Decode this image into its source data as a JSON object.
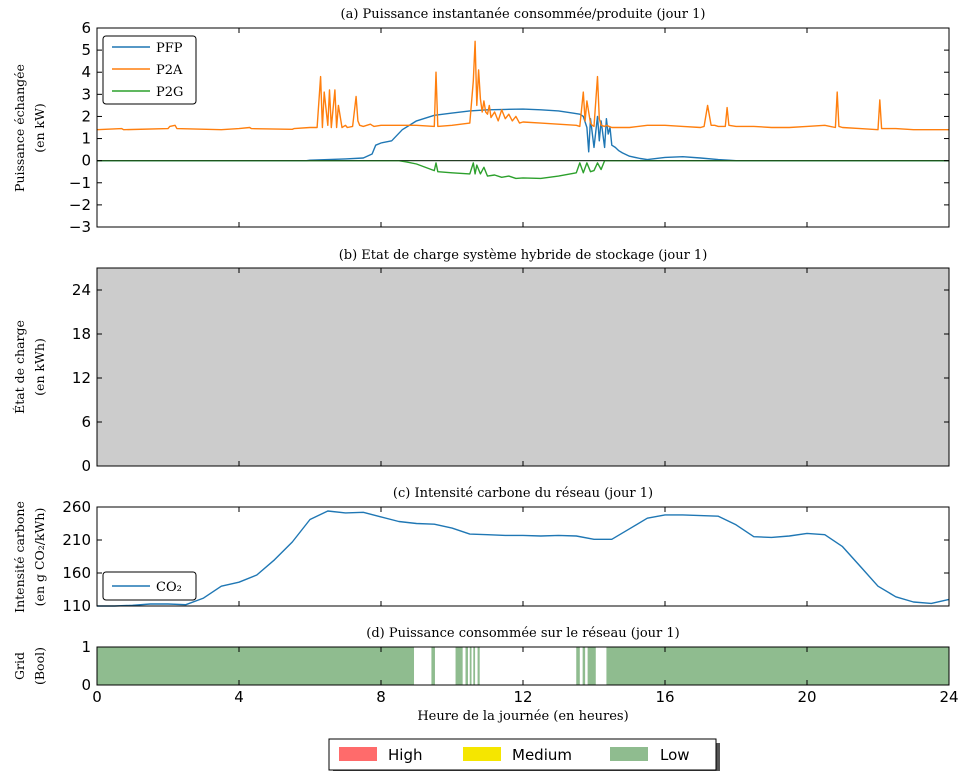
{
  "chart_data": [
    {
      "type": "line",
      "title": "(a) Puissance instantanée consommée/produite (jour 1)",
      "xlabel": "",
      "ylabel": [
        "Puissance échangée",
        "(en kW)"
      ],
      "xlim": [
        0,
        24
      ],
      "ylim": [
        -3,
        6
      ],
      "yticks": [
        "−3",
        "−2",
        "−1",
        "0",
        "1",
        "2",
        "3",
        "4",
        "5",
        "6"
      ],
      "legend": "top-left",
      "colors": {
        "PFP": "#1f77b4",
        "P2A": "#ff7f0e",
        "P2G": "#2ca02c"
      },
      "series": [
        {
          "name": "PFP",
          "x": [
            0,
            5.9,
            6.0,
            6.5,
            7.0,
            7.5,
            7.75,
            7.85,
            8.0,
            8.3,
            8.6,
            9.0,
            9.5,
            10.0,
            10.5,
            11.0,
            11.5,
            12.0,
            12.5,
            13.0,
            13.4,
            13.6,
            13.7,
            13.8,
            13.85,
            13.9,
            14.0,
            14.1,
            14.15,
            14.2,
            14.3,
            14.35,
            14.4,
            14.45,
            14.5,
            14.6,
            14.7,
            14.8,
            15.0,
            15.3,
            15.5,
            16.0,
            16.5,
            17.0,
            17.5,
            17.8,
            18.0,
            24
          ],
          "y": [
            0,
            0,
            0.02,
            0.05,
            0.08,
            0.12,
            0.3,
            0.7,
            0.8,
            0.9,
            1.4,
            1.8,
            2.05,
            2.15,
            2.25,
            2.3,
            2.32,
            2.33,
            2.3,
            2.25,
            2.15,
            2.1,
            2.0,
            1.5,
            0.4,
            1.9,
            0.6,
            2.0,
            0.9,
            1.8,
            0.6,
            1.9,
            1.2,
            1.5,
            0.7,
            0.6,
            0.45,
            0.35,
            0.2,
            0.1,
            0.05,
            0.15,
            0.18,
            0.12,
            0.05,
            0.02,
            0,
            0
          ]
        },
        {
          "name": "P2A",
          "x": [
            0,
            0.7,
            0.75,
            2.0,
            2.05,
            2.2,
            2.25,
            3.5,
            4.0,
            4.3,
            4.35,
            5.5,
            5.55,
            6.0,
            6.2,
            6.3,
            6.35,
            6.4,
            6.5,
            6.55,
            6.6,
            6.7,
            6.75,
            6.8,
            6.9,
            7.0,
            7.05,
            7.2,
            7.3,
            7.35,
            7.4,
            7.5,
            7.6,
            7.7,
            7.75,
            7.8,
            8.0,
            8.5,
            9.0,
            9.5,
            9.55,
            9.6,
            10.0,
            10.5,
            10.6,
            10.65,
            10.7,
            10.75,
            10.8,
            10.85,
            10.9,
            10.95,
            11.0,
            11.05,
            11.1,
            11.2,
            11.3,
            11.4,
            11.5,
            11.6,
            11.7,
            11.8,
            11.9,
            12.0,
            12.5,
            13.0,
            13.5,
            13.6,
            13.7,
            13.75,
            13.8,
            13.9,
            13.95,
            14.0,
            14.1,
            14.15,
            14.2,
            14.3,
            14.35,
            14.5,
            15.0,
            15.5,
            16.0,
            16.5,
            17.0,
            17.1,
            17.2,
            17.3,
            17.4,
            17.5,
            17.7,
            17.75,
            17.8,
            18.0,
            18.5,
            19.0,
            19.5,
            20.0,
            20.5,
            20.8,
            20.85,
            20.9,
            21.0,
            21.5,
            22.0,
            22.05,
            22.1,
            22.2,
            22.5,
            23.0,
            23.5,
            24
          ],
          "y": [
            1.4,
            1.45,
            1.4,
            1.45,
            1.55,
            1.6,
            1.45,
            1.4,
            1.45,
            1.5,
            1.45,
            1.42,
            1.45,
            1.5,
            1.5,
            3.8,
            1.5,
            3.1,
            1.6,
            3.2,
            1.5,
            3.2,
            1.5,
            2.5,
            1.5,
            1.6,
            1.5,
            1.55,
            2.9,
            1.8,
            1.6,
            1.55,
            1.6,
            1.65,
            1.6,
            1.55,
            1.6,
            1.6,
            1.6,
            1.55,
            4.0,
            1.55,
            1.6,
            1.7,
            3.6,
            5.4,
            2.5,
            4.1,
            2.8,
            2.2,
            2.7,
            2.2,
            2.1,
            2.5,
            1.95,
            2.2,
            1.8,
            2.3,
            1.9,
            2.1,
            1.8,
            2.0,
            1.7,
            1.75,
            1.7,
            1.65,
            1.6,
            1.55,
            3.1,
            1.8,
            2.7,
            1.7,
            1.6,
            1.55,
            3.8,
            1.9,
            1.6,
            1.55,
            1.6,
            1.5,
            1.5,
            1.6,
            1.6,
            1.55,
            1.5,
            1.55,
            2.5,
            1.6,
            1.6,
            1.55,
            1.55,
            2.4,
            1.6,
            1.55,
            1.55,
            1.5,
            1.5,
            1.55,
            1.6,
            1.5,
            3.1,
            1.55,
            1.5,
            1.45,
            1.4,
            2.75,
            1.45,
            1.45,
            1.45,
            1.4,
            1.4,
            1.4
          ]
        },
        {
          "name": "P2G",
          "x": [
            0,
            8.5,
            8.7,
            9.0,
            9.5,
            9.55,
            9.6,
            10.0,
            10.5,
            10.6,
            10.65,
            10.7,
            10.8,
            10.9,
            11.0,
            11.2,
            11.4,
            11.6,
            11.8,
            12.0,
            12.5,
            13.0,
            13.5,
            13.6,
            13.7,
            13.8,
            13.9,
            14.0,
            14.1,
            14.2,
            14.3,
            24
          ],
          "y": [
            0,
            0,
            -0.05,
            -0.15,
            -0.45,
            -0.1,
            -0.5,
            -0.55,
            -0.6,
            -0.1,
            -0.6,
            -0.2,
            -0.6,
            -0.3,
            -0.7,
            -0.65,
            -0.75,
            -0.7,
            -0.8,
            -0.78,
            -0.8,
            -0.7,
            -0.55,
            -0.1,
            -0.55,
            -0.1,
            -0.5,
            -0.45,
            -0.1,
            -0.4,
            0,
            0
          ]
        }
      ]
    },
    {
      "type": "area",
      "title": "(b) Etat de charge système hybride de stockage (jour 1)",
      "xlabel": "",
      "ylabel": [
        "État de charge",
        "(en kWh)"
      ],
      "xlim": [
        0,
        24
      ],
      "ylim": [
        0,
        27
      ],
      "yticks": [
        "0",
        "6",
        "12",
        "18",
        "24"
      ],
      "colors": {
        "fill": "#cccccc"
      },
      "series": [
        {
          "x": [
            0,
            24
          ],
          "y": [
            27,
            27
          ]
        }
      ]
    },
    {
      "type": "line",
      "title": "(c) Intensité carbone du réseau (jour 1)",
      "xlabel": "",
      "ylabel": [
        "Intensité carbone",
        "(en g CO₂/kWh)"
      ],
      "xlim": [
        0,
        24
      ],
      "ylim": [
        110,
        260
      ],
      "yticks": [
        "110",
        "160",
        "210",
        "260"
      ],
      "legend": "bottom-left",
      "colors": {
        "CO2": "#1f77b4"
      },
      "series": [
        {
          "name": "CO₂",
          "x": [
            0,
            0.5,
            1.0,
            1.5,
            2.0,
            2.5,
            3.0,
            3.5,
            4.0,
            4.5,
            5.0,
            5.5,
            6.0,
            6.5,
            7.0,
            7.5,
            8.0,
            8.5,
            9.0,
            9.5,
            10.0,
            10.5,
            11.0,
            11.5,
            12.0,
            12.5,
            13.0,
            13.5,
            14.0,
            14.5,
            15.0,
            15.5,
            16.0,
            16.5,
            17.0,
            17.5,
            18.0,
            18.5,
            19.0,
            19.5,
            20.0,
            20.5,
            21.0,
            21.5,
            22.0,
            22.5,
            23.0,
            23.5,
            24.0
          ],
          "y": [
            110,
            110,
            111,
            113,
            113,
            112,
            122,
            140,
            146,
            157,
            180,
            207,
            241,
            254,
            251,
            252,
            245,
            238,
            235,
            234,
            228,
            219,
            218,
            217,
            217,
            216,
            217,
            216,
            211,
            211,
            227,
            243,
            248,
            248,
            247,
            246,
            233,
            215,
            214,
            216,
            220,
            218,
            200,
            170,
            140,
            124,
            116,
            114,
            120
          ]
        }
      ]
    },
    {
      "type": "bar",
      "title": "(d) Puissance consommée sur le réseau (jour 1)",
      "xlabel": "Heure de la journée (en heures)",
      "ylabel": [
        "Grid",
        "(Bool)"
      ],
      "xlim": [
        0,
        24
      ],
      "ylim": [
        0,
        1
      ],
      "yticks": [
        "0",
        "1"
      ],
      "xticks": [
        "0",
        "4",
        "8",
        "12",
        "16",
        "20",
        "24"
      ],
      "colors": {
        "Low": "#8fbc8f"
      },
      "segments": [
        {
          "start": 0,
          "end": 8.93,
          "level": "Low"
        },
        {
          "start": 9.42,
          "end": 9.52,
          "level": "Low"
        },
        {
          "start": 10.1,
          "end": 10.3,
          "level": "Low"
        },
        {
          "start": 10.38,
          "end": 10.45,
          "level": "Low"
        },
        {
          "start": 10.5,
          "end": 10.55,
          "level": "Low"
        },
        {
          "start": 10.6,
          "end": 10.65,
          "level": "Low"
        },
        {
          "start": 10.72,
          "end": 10.78,
          "level": "Low"
        },
        {
          "start": 13.5,
          "end": 13.6,
          "level": "Low"
        },
        {
          "start": 13.68,
          "end": 13.75,
          "level": "Low"
        },
        {
          "start": 13.82,
          "end": 14.05,
          "level": "Low"
        },
        {
          "start": 14.35,
          "end": 24,
          "level": "Low"
        }
      ]
    }
  ],
  "legend_levels": [
    {
      "label": "High",
      "color": "#ff6b6b"
    },
    {
      "label": "Medium",
      "color": "#f5e600"
    },
    {
      "label": "Low",
      "color": "#8fbc8f"
    }
  ]
}
